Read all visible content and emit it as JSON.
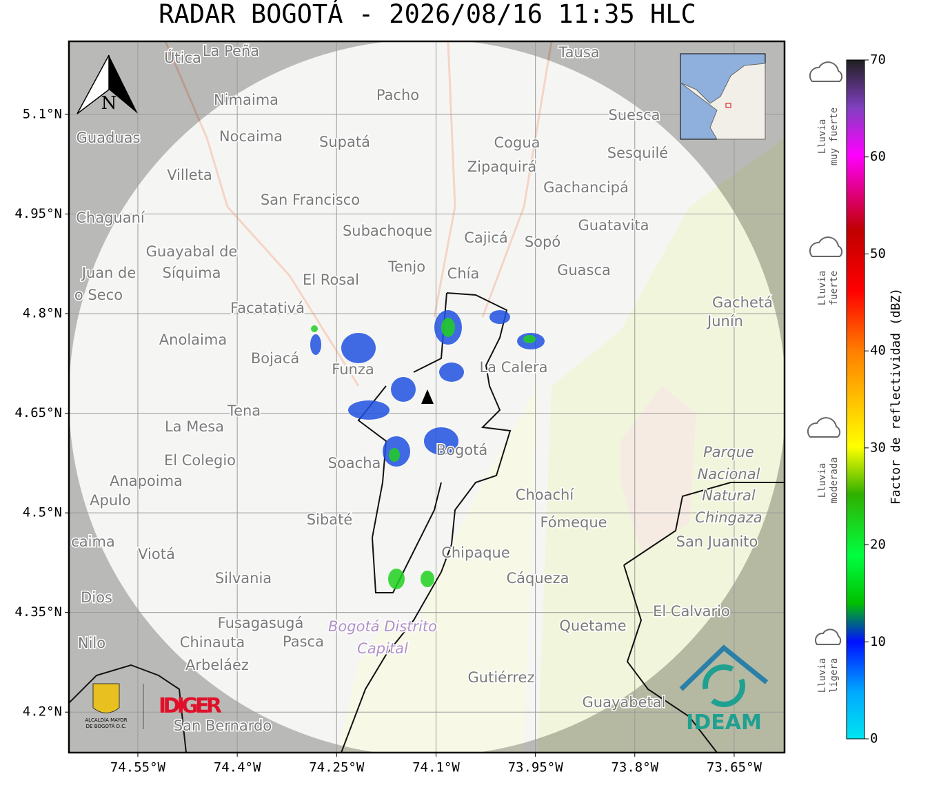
{
  "title": "RADAR BOGOTÁ - 2026/08/16 11:35 HLC",
  "map": {
    "xlim": [
      -74.654,
      -73.574
    ],
    "ylim": [
      4.139,
      5.21
    ],
    "xticks": [
      {
        "value": -74.55,
        "label": "74.55°W"
      },
      {
        "value": -74.4,
        "label": "74.4°W"
      },
      {
        "value": -74.25,
        "label": "74.25°W"
      },
      {
        "value": -74.1,
        "label": "74.1°W"
      },
      {
        "value": -73.95,
        "label": "73.95°W"
      },
      {
        "value": -73.8,
        "label": "73.8°W"
      },
      {
        "value": -73.65,
        "label": "73.65°W"
      }
    ],
    "yticks": [
      {
        "value": 5.1,
        "label": "5.1°N"
      },
      {
        "value": 4.95,
        "label": "4.95°N"
      },
      {
        "value": 4.8,
        "label": "4.8°N"
      },
      {
        "value": 4.65,
        "label": "4.65°N"
      },
      {
        "value": 4.5,
        "label": "4.5°N"
      },
      {
        "value": 4.35,
        "label": "4.35°N"
      },
      {
        "value": 4.2,
        "label": "4.2°N"
      }
    ],
    "north": "N",
    "places": [
      "Útica",
      "La Peña",
      "Tausa",
      "Pacho",
      "Nimaima",
      "Suesca",
      "Guaduas",
      "Nocaima",
      "Supatá",
      "Cogua",
      "Sesquilé",
      "Zipaquirá",
      "Villeta",
      "Gachancipá",
      "San Francisco",
      "Chaguaní",
      "Guatavita",
      "Subachoque",
      "Cajicá",
      "Sopó",
      "Guayabal de",
      "Síquima",
      "Juan de",
      "o Seco",
      "Tenjo",
      "Guasca",
      "El Rosal",
      "Chía",
      "Facatativá",
      "Gachetá",
      "Junín",
      "Anolaima",
      "Bojacá",
      "Funza",
      "La Calera",
      "Tena",
      "La Mesa",
      "El Colegio",
      "Soacha",
      "Bogotá",
      "Anapoima",
      "Apulo",
      "Choachí",
      "Parque",
      "Nacional",
      "Natural",
      "Chingaza",
      "Sibaté",
      "Fómeque",
      "San Juanito",
      "caima",
      "Viotá",
      "Chipaque",
      "Silvania",
      "Cáqueza",
      "Dios",
      "El Calvario",
      "Fusagasugá",
      "Quetame",
      "Bogotá Distrito",
      "Capital",
      "Chinauta",
      "Pasca",
      "Nilo",
      "Arbeláez",
      "Gutiérrez",
      "Guayabetal",
      "San Bernardo"
    ]
  },
  "logos": {
    "alcaldia": [
      "ALCALDÍA MAYOR",
      "DE BOGOTÁ D.C."
    ],
    "idiger": "IDIGER",
    "ideam": "IDEAM"
  },
  "colorbar": {
    "label": "Factor de reflectividad (dBZ)",
    "lim": [
      0,
      70
    ],
    "ticks": [
      0,
      10,
      20,
      30,
      40,
      50,
      60,
      70
    ]
  },
  "rain_levels": [
    [
      "Lluvia",
      "muy fuerte"
    ],
    [
      "Lluvia",
      "fuerte"
    ],
    [
      "Lluvia",
      "moderada"
    ],
    [
      "Lluvia",
      "ligera"
    ]
  ]
}
